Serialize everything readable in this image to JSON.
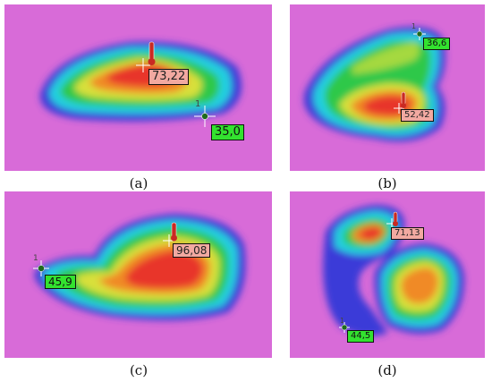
{
  "colors": {
    "background": "#d86bd8",
    "hot_tag": "#f2a9a1",
    "cold_tag": "#33e22f"
  },
  "panels": [
    {
      "caption": "(a)",
      "max_label": "73,22",
      "min_label": "35,0",
      "marker": "1"
    },
    {
      "caption": "(b)",
      "max_label": "52,42",
      "min_label": "36,6",
      "marker": "1"
    },
    {
      "caption": "(c)",
      "max_label": "96,08",
      "min_label": "45,9",
      "marker": "1"
    },
    {
      "caption": "(d)",
      "max_label": "71,13",
      "min_label": "44,5",
      "marker": "1"
    }
  ]
}
